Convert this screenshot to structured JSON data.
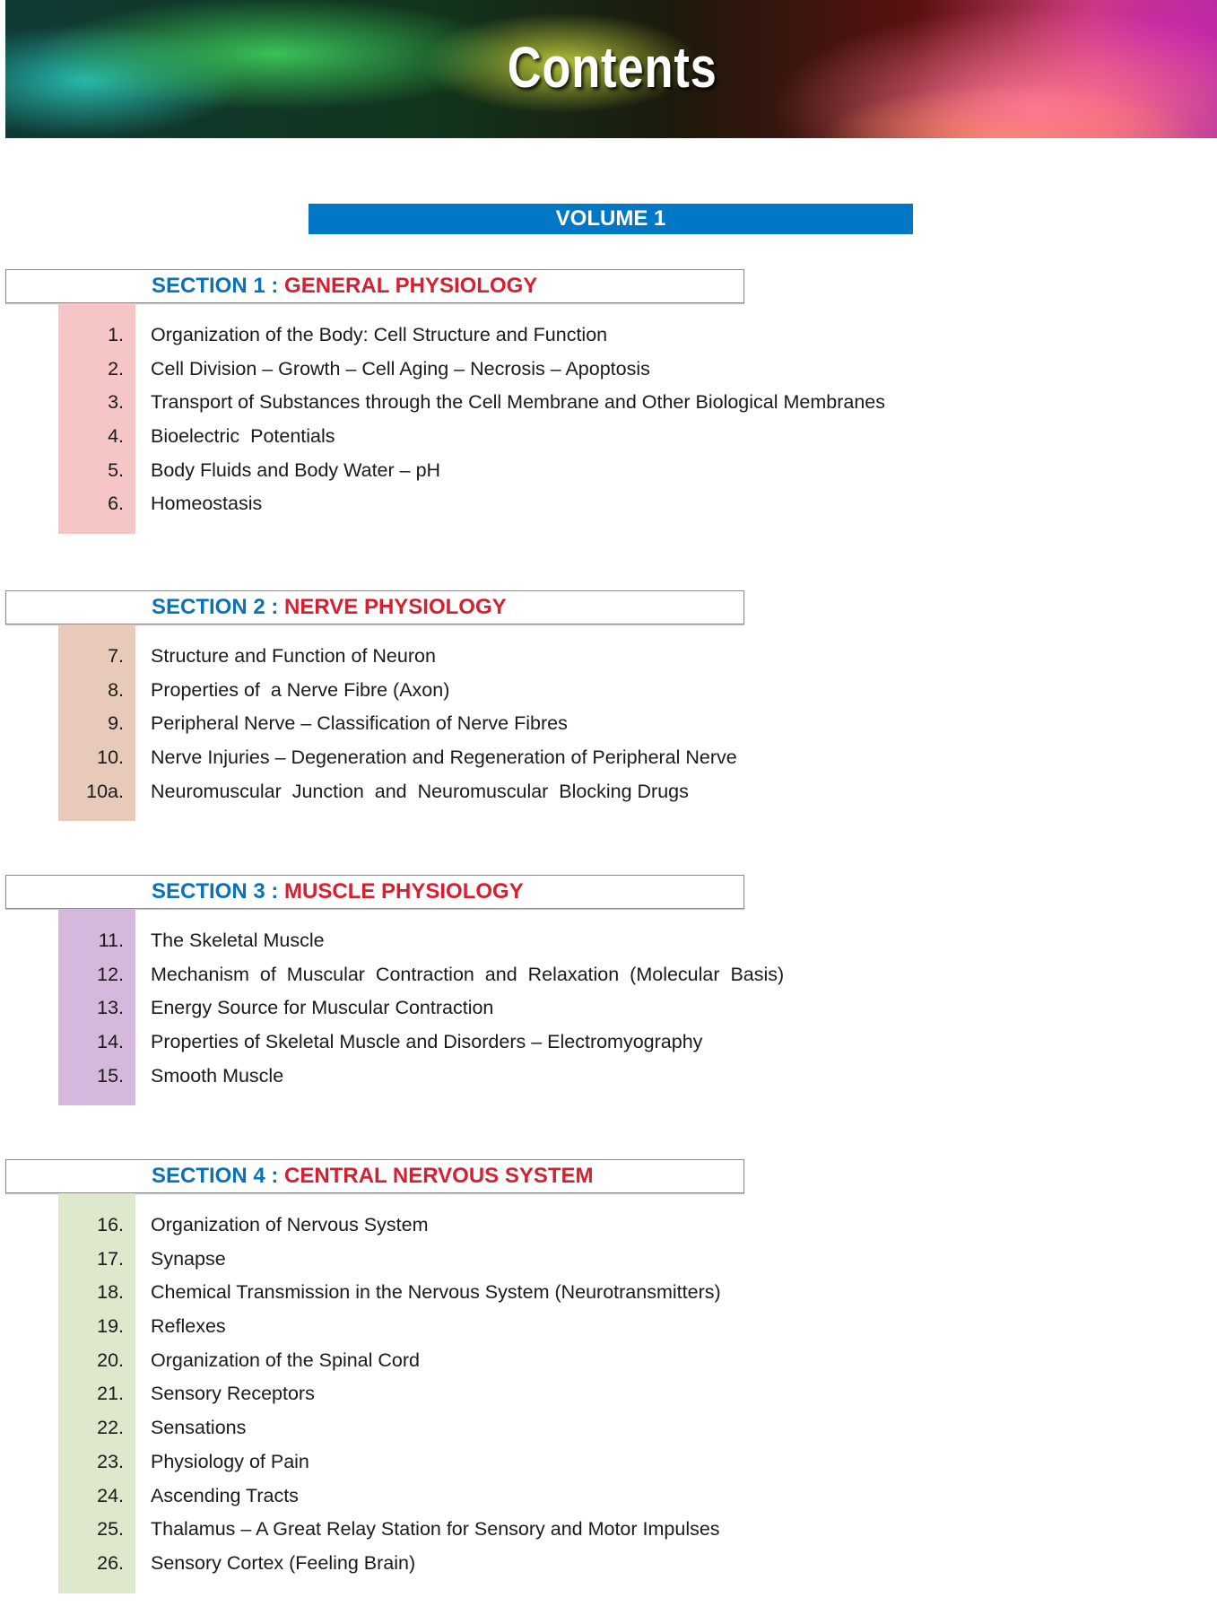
{
  "banner": {
    "title": "Contents"
  },
  "volume": "VOLUME 1",
  "sections": [
    {
      "label": "SECTION 1 :",
      "name": "GENERAL PHYSIOLOGY",
      "color": "#f6c6c6",
      "chapters": [
        {
          "num": "1.",
          "title": "Organization of the Body: Cell Structure and Function"
        },
        {
          "num": "2.",
          "title": "Cell Division – Growth – Cell Aging – Necrosis – Apoptosis"
        },
        {
          "num": "3.",
          "title": "Transport of Substances through the Cell Membrane and Other Biological Membranes"
        },
        {
          "num": "4.",
          "title": "Bioelectric  Potentials"
        },
        {
          "num": "5.",
          "title": "Body Fluids and Body Water – pH"
        },
        {
          "num": "6.",
          "title": "Homeostasis"
        }
      ]
    },
    {
      "label": "SECTION 2 :",
      "name": "NERVE PHYSIOLOGY",
      "color": "#e7cab9",
      "chapters": [
        {
          "num": "7.",
          "title": "Structure and Function of Neuron"
        },
        {
          "num": "8.",
          "title": "Properties of  a Nerve Fibre (Axon)"
        },
        {
          "num": "9.",
          "title": "Peripheral Nerve – Classification of Nerve Fibres"
        },
        {
          "num": "10.",
          "title": "Nerve Injuries – Degeneration and Regeneration of Peripheral Nerve"
        },
        {
          "num": "10a.",
          "title": "Neuromuscular  Junction  and  Neuromuscular  Blocking Drugs"
        }
      ]
    },
    {
      "label": "SECTION 3 :",
      "name": "MUSCLE PHYSIOLOGY",
      "color": "#d5b9dc",
      "chapters": [
        {
          "num": "11.",
          "title": "The Skeletal Muscle"
        },
        {
          "num": "12.",
          "title": "Mechanism  of  Muscular  Contraction  and  Relaxation  (Molecular  Basis)"
        },
        {
          "num": "13.",
          "title": "Energy Source for Muscular Contraction"
        },
        {
          "num": "14.",
          "title": "Properties of Skeletal Muscle and Disorders – Electromyography"
        },
        {
          "num": "15.",
          "title": "Smooth Muscle"
        }
      ]
    },
    {
      "label": "SECTION 4 :",
      "name": "CENTRAL NERVOUS SYSTEM",
      "color": "#dee8cd",
      "chapters": [
        {
          "num": "16.",
          "title": "Organization of Nervous System"
        },
        {
          "num": "17.",
          "title": "Synapse"
        },
        {
          "num": "18.",
          "title": "Chemical Transmission in the Nervous System (Neurotransmitters)"
        },
        {
          "num": "19.",
          "title": "Reflexes"
        },
        {
          "num": "20.",
          "title": "Organization of the Spinal Cord"
        },
        {
          "num": "21.",
          "title": "Sensory Receptors"
        },
        {
          "num": "22.",
          "title": "Sensations"
        },
        {
          "num": "23.",
          "title": "Physiology of Pain"
        },
        {
          "num": "24.",
          "title": "Ascending Tracts"
        },
        {
          "num": "25.",
          "title": "Thalamus – A Great Relay Station for Sensory and Motor Impulses"
        },
        {
          "num": "26.",
          "title": "Sensory Cortex (Feeling Brain)"
        }
      ]
    }
  ]
}
